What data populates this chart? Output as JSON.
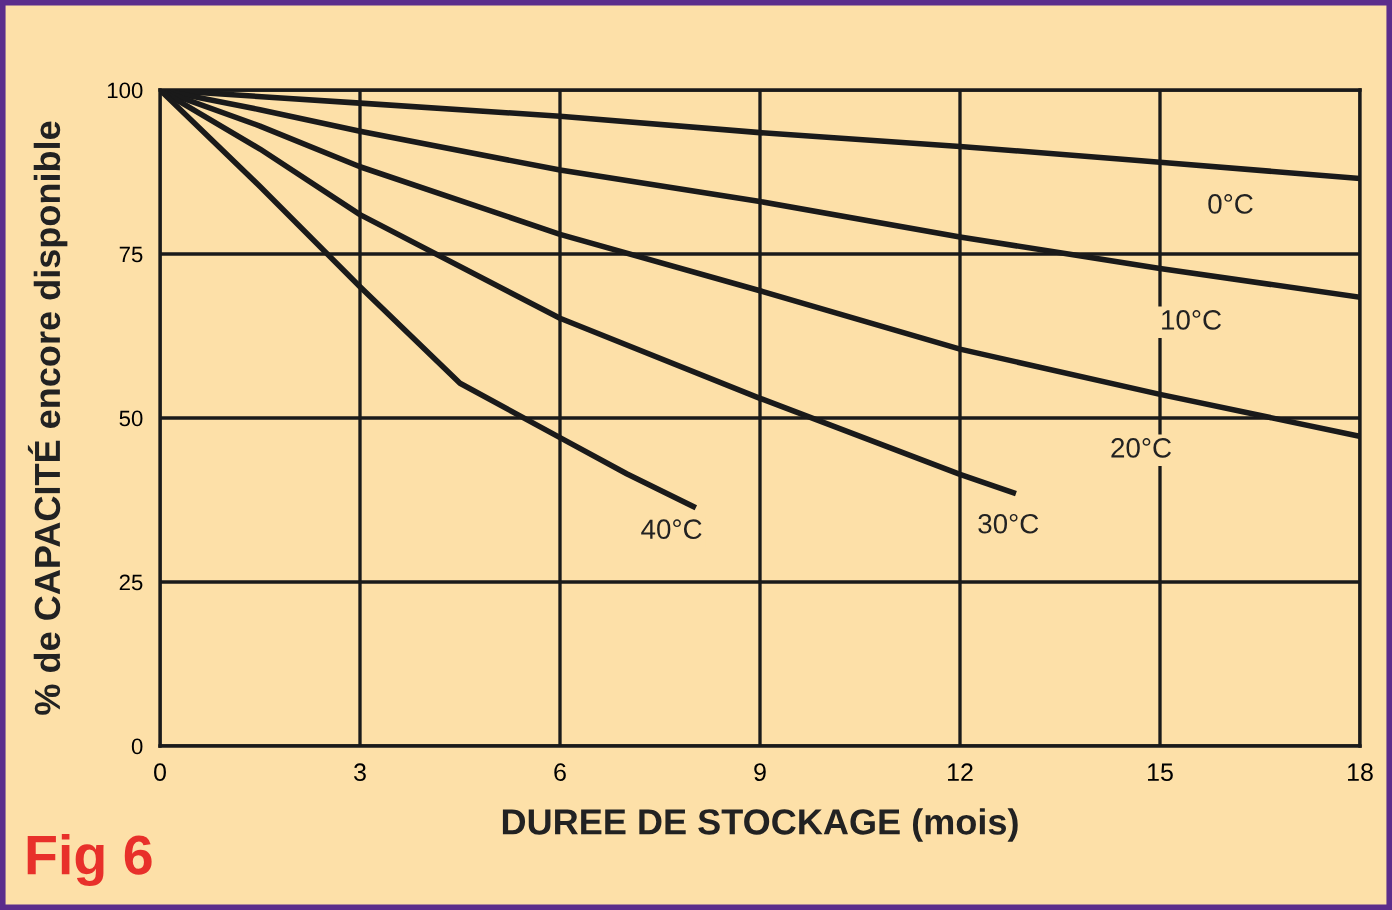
{
  "chart_data": {
    "type": "line",
    "xlabel": "DUREE DE STOCKAGE (mois)",
    "ylabel": "% de CAPACITÉ encore disponible",
    "xlim": [
      0,
      18
    ],
    "ylim": [
      0,
      100
    ],
    "xticks": [
      0,
      3,
      6,
      9,
      12,
      15,
      18
    ],
    "yticks": [
      0,
      25,
      50,
      75,
      100
    ],
    "grid": true,
    "marker": "none",
    "line_style": "solid",
    "series": [
      {
        "name": "0°C",
        "color": "#1a1a1a",
        "x": [
          0,
          3,
          6,
          9,
          12,
          15,
          18
        ],
        "values": [
          100,
          98,
          96,
          93.5,
          91.4,
          89,
          86.5
        ]
      },
      {
        "name": "10°C",
        "color": "#1a1a1a",
        "x": [
          0,
          1.5,
          3,
          6,
          9,
          12,
          15,
          18
        ],
        "values": [
          100,
          97,
          93.7,
          87.8,
          83,
          77.6,
          72.8,
          68.4
        ]
      },
      {
        "name": "20°C",
        "color": "#1a1a1a",
        "x": [
          0,
          1.5,
          3,
          6,
          9,
          12,
          15,
          18
        ],
        "values": [
          100,
          94.5,
          88.3,
          78,
          69.4,
          60.5,
          53.6,
          47.2
        ]
      },
      {
        "name": "30°C",
        "color": "#1a1a1a",
        "x": [
          0,
          1.5,
          3,
          6,
          9,
          12,
          12.8
        ],
        "values": [
          100,
          91,
          81,
          65.2,
          53,
          41.4,
          38.6
        ]
      },
      {
        "name": "40°C",
        "color": "#1a1a1a",
        "x": [
          0,
          1.5,
          3,
          4.5,
          6,
          7,
          8
        ],
        "values": [
          100,
          85.3,
          70,
          55.3,
          47,
          41.5,
          36.5
        ]
      }
    ],
    "annotations": [
      "Fig 6"
    ]
  }
}
